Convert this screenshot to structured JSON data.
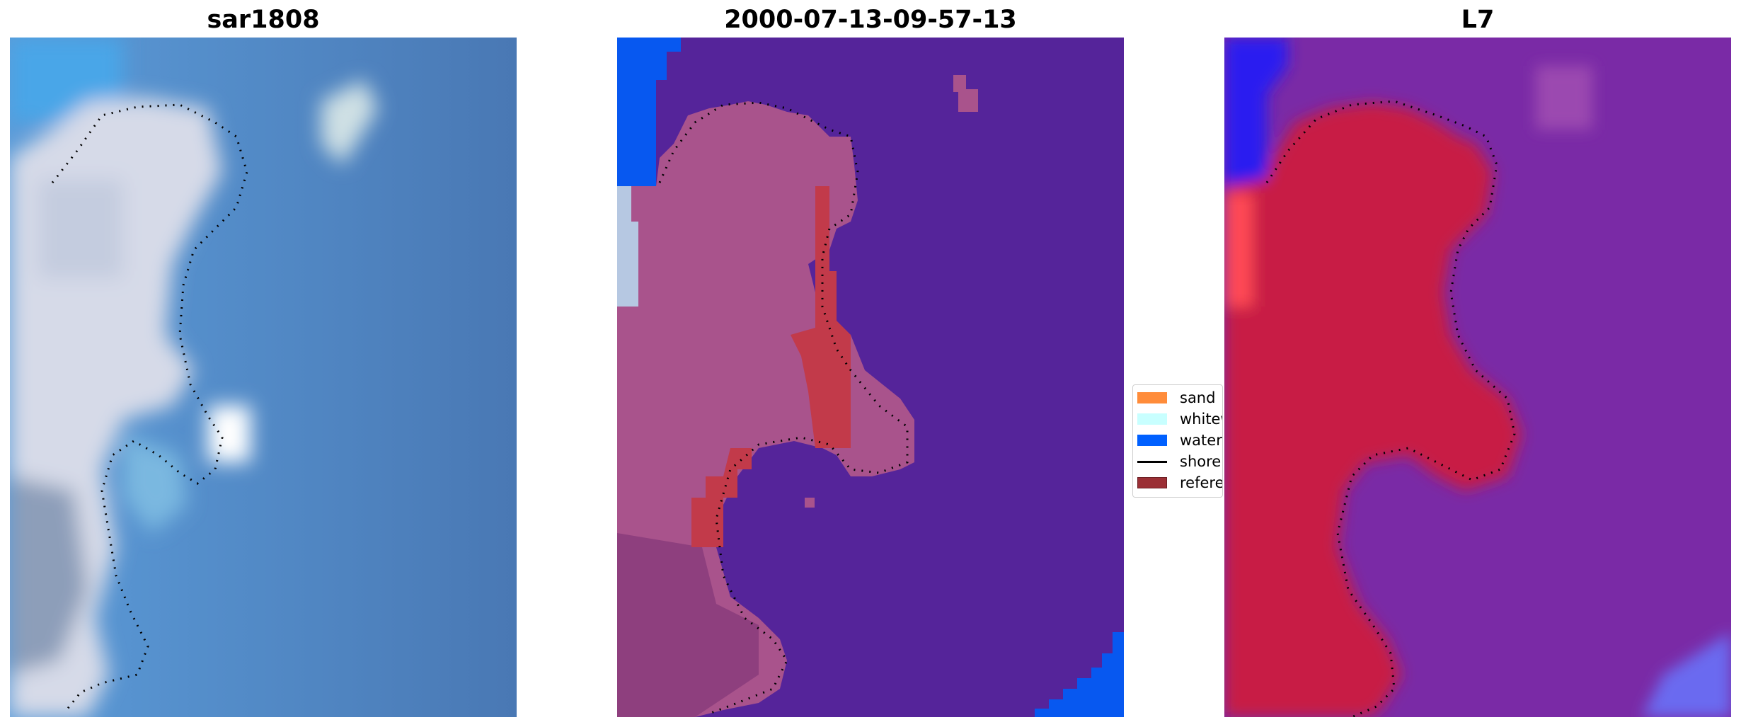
{
  "panels": [
    {
      "title": "sar1808"
    },
    {
      "title": "2000-07-13-09-57-13"
    },
    {
      "title": "L7"
    }
  ],
  "legend": {
    "items": [
      {
        "label": "sand",
        "color": "#ff8c3a",
        "kind": "patch"
      },
      {
        "label": "whitewater",
        "color": "#c8ffff",
        "kind": "patch"
      },
      {
        "label": "water",
        "color": "#0060ff",
        "kind": "patch"
      },
      {
        "label": "shoreline",
        "color": "#000000",
        "kind": "line"
      },
      {
        "label": "reference",
        "color": "#9b2f35",
        "kind": "patch"
      }
    ]
  },
  "colors": {
    "water_classified": "#55249a",
    "land_classified": "#a9538c",
    "sand_overlay": "#c23a4a",
    "water_edge": "#0758f0",
    "sat_water": "#4c82be",
    "sat_land": "#d4d8e6",
    "mndwi_water": "#7a2aa6",
    "mndwi_land": "#c81d45",
    "mndwi_edge": "#2a1cf0"
  }
}
